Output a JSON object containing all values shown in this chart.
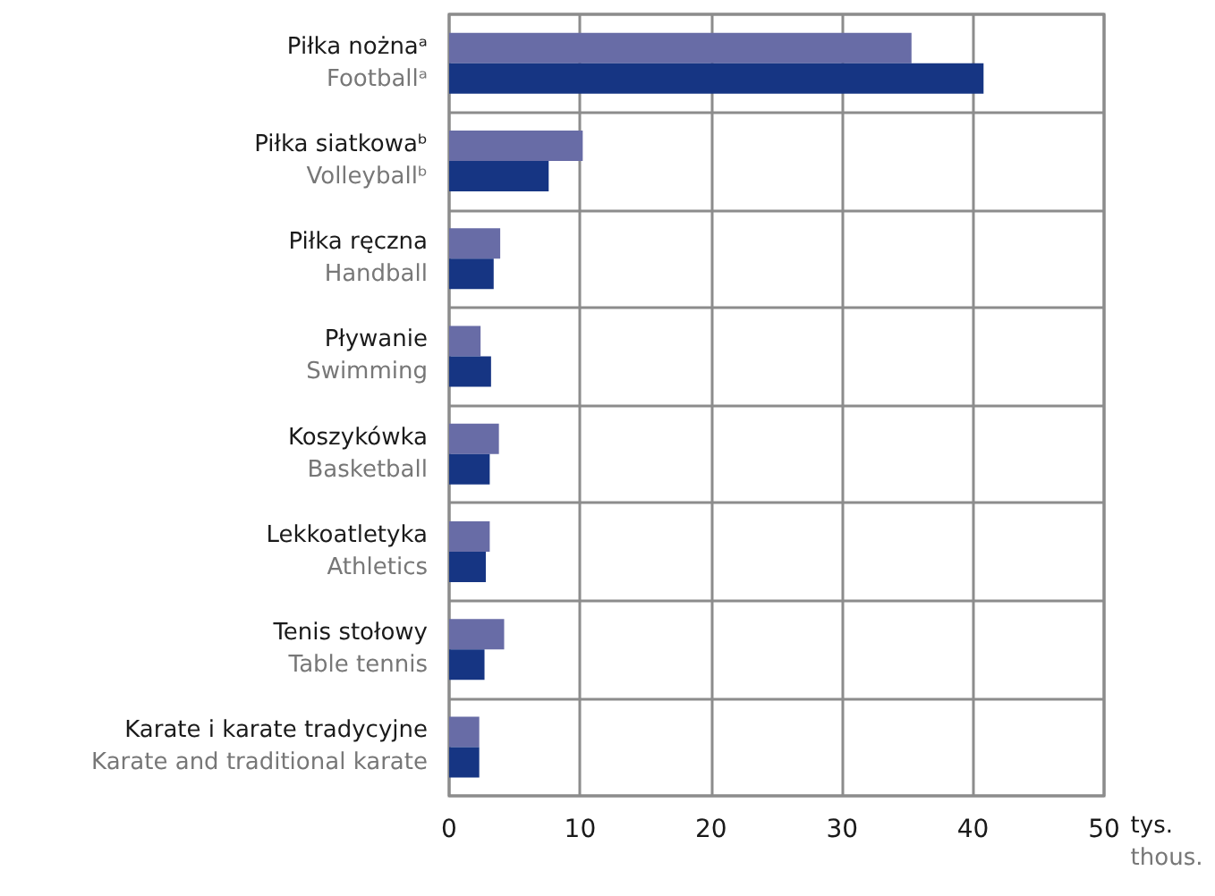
{
  "chart_data": {
    "type": "bar",
    "orientation": "horizontal",
    "xlabel": "tys.\nthous.",
    "categories": [
      "Piłka nożnaᵃ\nFootballᵃ",
      "Piłka siatkowaᵇ\nVolleyballᵇ",
      "Piłka ręczna\nHandball",
      "Pływanie\nSwimming",
      "Koszykówka\nBasketball",
      "Lekkoatletyka\nAthletics",
      "Tenis stołowy\nTable tennis",
      "Karate i karate tradycyjne\nKarate and traditional karate"
    ],
    "series": [
      {
        "color": "#686ca6",
        "values": [
          35.3,
          10.2,
          3.9,
          2.4,
          3.8,
          3.1,
          4.2,
          2.3
        ]
      },
      {
        "color": "#163583",
        "values": [
          40.8,
          7.6,
          3.4,
          3.2,
          3.1,
          2.8,
          2.7,
          2.3
        ]
      }
    ],
    "xlim": [
      0,
      50
    ],
    "xticks": [
      0,
      10,
      20,
      30,
      40,
      50
    ],
    "grid": true
  }
}
